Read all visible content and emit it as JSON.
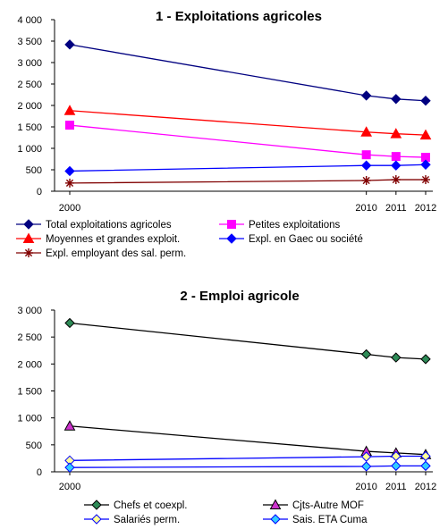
{
  "chart_data": [
    {
      "type": "line",
      "title": "1 - Exploitations agricoles",
      "x": [
        "2000",
        "2010",
        "2011",
        "2012"
      ],
      "x_numeric": [
        2000,
        2010,
        2011,
        2012
      ],
      "ylim": [
        0,
        4000
      ],
      "yticks": [
        0,
        500,
        1000,
        1500,
        2000,
        2500,
        3000,
        3500,
        4000
      ],
      "ytick_labels": [
        "0",
        "500",
        "1 000",
        "1 500",
        "2 000",
        "2 500",
        "3 000",
        "3 500",
        "4 000"
      ],
      "grid": false,
      "legend_placement": "bottom",
      "series": [
        {
          "name": "Total exploitations agricoles",
          "values": [
            3420,
            2230,
            2150,
            2110
          ],
          "color": "#000080",
          "marker": "diamond"
        },
        {
          "name": "Petites exploitations",
          "values": [
            1540,
            850,
            810,
            790
          ],
          "color": "#ff00ff",
          "marker": "square"
        },
        {
          "name": "Moyennes et grandes exploit.",
          "values": [
            1880,
            1380,
            1340,
            1310
          ],
          "color": "#ff0000",
          "marker": "triangle"
        },
        {
          "name": "Expl. en Gaec ou société",
          "values": [
            470,
            600,
            600,
            620
          ],
          "color": "#0000ff",
          "marker": "diamond"
        },
        {
          "name": "Expl. employant des sal. perm.",
          "values": [
            190,
            250,
            270,
            270
          ],
          "color": "#800000",
          "marker": "star"
        }
      ]
    },
    {
      "type": "line",
      "title": "2 - Emploi agricole",
      "x": [
        "2000",
        "2010",
        "2011",
        "2012"
      ],
      "x_numeric": [
        2000,
        2010,
        2011,
        2012
      ],
      "ylim": [
        0,
        3000
      ],
      "yticks": [
        0,
        500,
        1000,
        1500,
        2000,
        2500,
        3000
      ],
      "ytick_labels": [
        "0",
        "500",
        "1 000",
        "1 500",
        "2 000",
        "2 500",
        "3 000"
      ],
      "grid": false,
      "legend_placement": "bottom",
      "series": [
        {
          "name": "Chefs et coexpl.",
          "values": [
            2760,
            2180,
            2120,
            2090
          ],
          "color": "#000000",
          "marker": "diamond",
          "fill": "#2e8b57"
        },
        {
          "name": "Cjts-Autre MOF",
          "values": [
            850,
            380,
            350,
            320
          ],
          "color": "#000000",
          "marker": "triangle",
          "fill": "#cc33cc"
        },
        {
          "name": "Salariés perm.",
          "values": [
            210,
            280,
            290,
            290
          ],
          "color": "#0000ff",
          "marker": "diamond",
          "fill": "#ffff99"
        },
        {
          "name": "Sais. ETA Cuma",
          "values": [
            80,
            100,
            110,
            110
          ],
          "color": "#0000ff",
          "marker": "diamond",
          "fill": "#33ccff"
        }
      ]
    }
  ]
}
